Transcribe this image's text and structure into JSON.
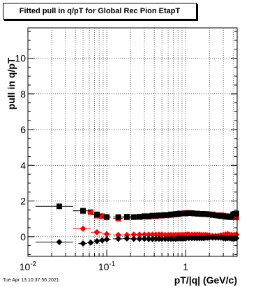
{
  "chart_data": {
    "type": "scatter",
    "title": "Fitted pull in q/pT for Global Rec Pion EtapT",
    "xlabel": "pT/|q| (GeV/c)",
    "ylabel": "pull in q/pT",
    "x_scale": "log",
    "xlim": [
      0.01,
      4.5
    ],
    "ylim": [
      -1.1,
      11.7
    ],
    "grid": true,
    "x_ticks": [
      {
        "value": 0.01,
        "base": "10",
        "exp": "-2"
      },
      {
        "value": 0.1,
        "base": "10",
        "exp": "-1"
      },
      {
        "value": 1,
        "base": "1",
        "exp": ""
      }
    ],
    "y_ticks": [
      0,
      2,
      4,
      6,
      8,
      10
    ],
    "series": [
      {
        "marker": "square",
        "color": "#ff0000",
        "x": [
          0.05,
          0.0625,
          0.075,
          0.0875,
          0.1,
          0.14,
          0.18,
          0.22,
          0.26,
          0.3,
          0.34,
          0.38,
          0.42,
          0.46,
          0.5,
          0.54,
          0.58,
          0.62,
          0.66,
          0.7,
          0.74,
          0.78,
          0.82,
          0.86,
          0.9,
          0.94,
          0.98,
          1.02,
          1.06,
          1.1,
          1.14,
          1.18,
          1.22,
          1.26,
          1.3,
          1.34,
          1.38,
          1.42,
          1.46,
          1.5,
          1.6,
          1.7,
          1.8,
          1.9,
          2.0,
          2.2,
          2.4,
          2.6,
          2.8,
          3.0,
          3.2,
          3.4,
          3.6,
          3.8,
          4.0,
          4.2,
          4.4
        ],
        "y": [
          1.45,
          1.38,
          1.18,
          1.15,
          1.1,
          1.02,
          1.08,
          1.1,
          1.1,
          1.12,
          1.12,
          1.15,
          1.15,
          1.18,
          1.18,
          1.2,
          1.2,
          1.22,
          1.22,
          1.25,
          1.25,
          1.27,
          1.27,
          1.3,
          1.3,
          1.3,
          1.32,
          1.33,
          1.33,
          1.33,
          1.33,
          1.32,
          1.32,
          1.3,
          1.3,
          1.3,
          1.3,
          1.28,
          1.28,
          1.28,
          1.27,
          1.27,
          1.26,
          1.26,
          1.25,
          1.25,
          1.2,
          1.2,
          1.2,
          1.18,
          1.16,
          1.15,
          1.12,
          1.1,
          1.1,
          1.1,
          1.08
        ],
        "xerr": [
          0.0125,
          0.00625,
          0.00625,
          0.00625,
          0.00625,
          0.02,
          0.02,
          0.02,
          0.02,
          0.02,
          0.02,
          0.02,
          0.02,
          0.02,
          0.02,
          0.02,
          0.02,
          0.02,
          0.02,
          0.02,
          0.02,
          0.02,
          0.02,
          0.02,
          0.02,
          0.02,
          0.02,
          0.02,
          0.02,
          0.02,
          0.02,
          0.02,
          0.02,
          0.02,
          0.02,
          0.02,
          0.02,
          0.02,
          0.02,
          0.02,
          0.05,
          0.05,
          0.05,
          0.05,
          0.05,
          0.1,
          0.1,
          0.1,
          0.1,
          0.1,
          0.1,
          0.1,
          0.1,
          0.1,
          0.1,
          0.1,
          0.1
        ]
      },
      {
        "marker": "diamond",
        "color": "#ff0000",
        "x": [
          0.05,
          0.075,
          0.1,
          0.14,
          0.18,
          0.22,
          0.26,
          0.3,
          0.34,
          0.38,
          0.42,
          0.46,
          0.5,
          0.55,
          0.6,
          0.65,
          0.7,
          0.75,
          0.8,
          0.85,
          0.9,
          0.95,
          1.0,
          1.05,
          1.1,
          1.2,
          1.3,
          1.4,
          1.5,
          1.6,
          1.7,
          1.8,
          1.9,
          2.0,
          2.2,
          2.4,
          2.6,
          2.8,
          3.0,
          3.2,
          3.4,
          3.6,
          3.8,
          4.0,
          4.2,
          4.4
        ],
        "y": [
          0.45,
          0.25,
          0.15,
          0.1,
          0.1,
          0.12,
          0.12,
          0.12,
          0.12,
          0.12,
          0.12,
          0.12,
          0.12,
          0.1,
          0.1,
          0.1,
          0.1,
          0.1,
          0.1,
          0.1,
          0.1,
          0.1,
          0.12,
          0.12,
          0.12,
          0.12,
          0.12,
          0.12,
          0.12,
          0.1,
          0.1,
          0.1,
          0.08,
          0.08,
          0.05,
          0.05,
          0.05,
          0.08,
          0.1,
          0.12,
          0.15,
          0.12,
          0.1,
          0.08,
          0.1,
          0.12
        ],
        "xerr": [
          0.0125,
          0.0125,
          0.0125,
          0.02,
          0.02,
          0.02,
          0.02,
          0.02,
          0.02,
          0.02,
          0.02,
          0.02,
          0.02,
          0.025,
          0.025,
          0.025,
          0.025,
          0.025,
          0.025,
          0.025,
          0.025,
          0.025,
          0.025,
          0.025,
          0.025,
          0.05,
          0.05,
          0.05,
          0.05,
          0.05,
          0.05,
          0.05,
          0.05,
          0.05,
          0.1,
          0.1,
          0.1,
          0.1,
          0.1,
          0.1,
          0.1,
          0.1,
          0.1,
          0.1,
          0.1,
          0.1
        ]
      },
      {
        "marker": "square",
        "color": "#000000",
        "x": [
          0.025,
          0.05,
          0.075,
          0.1,
          0.14,
          0.18,
          0.22,
          0.26,
          0.3,
          0.34,
          0.38,
          0.42,
          0.46,
          0.5,
          0.55,
          0.6,
          0.65,
          0.7,
          0.75,
          0.8,
          0.85,
          0.9,
          0.95,
          1.0,
          1.1,
          1.2,
          1.3,
          1.4,
          1.5,
          1.6,
          1.7,
          1.8,
          1.9,
          2.0,
          2.2,
          2.4,
          2.6,
          2.8,
          3.0,
          3.2,
          3.4,
          3.6,
          3.8,
          4.0,
          4.2,
          4.4
        ],
        "y": [
          1.7,
          1.45,
          1.25,
          1.1,
          1.1,
          1.12,
          1.1,
          1.12,
          1.15,
          1.15,
          1.18,
          1.18,
          1.2,
          1.2,
          1.22,
          1.22,
          1.25,
          1.25,
          1.27,
          1.27,
          1.3,
          1.3,
          1.3,
          1.3,
          1.32,
          1.32,
          1.3,
          1.3,
          1.28,
          1.28,
          1.27,
          1.27,
          1.26,
          1.25,
          1.22,
          1.2,
          1.18,
          1.16,
          1.15,
          1.12,
          1.12,
          1.1,
          1.1,
          1.25,
          1.28,
          1.3
        ],
        "xerr": [
          0.0125,
          0.0125,
          0.0125,
          0.0125,
          0.02,
          0.02,
          0.02,
          0.02,
          0.02,
          0.02,
          0.02,
          0.02,
          0.02,
          0.025,
          0.025,
          0.025,
          0.025,
          0.025,
          0.025,
          0.025,
          0.025,
          0.025,
          0.025,
          0.025,
          0.05,
          0.05,
          0.05,
          0.05,
          0.05,
          0.05,
          0.05,
          0.05,
          0.05,
          0.05,
          0.1,
          0.1,
          0.1,
          0.1,
          0.1,
          0.1,
          0.1,
          0.1,
          0.1,
          0.1,
          0.1,
          0.1
        ]
      },
      {
        "marker": "diamond",
        "color": "#000000",
        "x": [
          0.025,
          0.05,
          0.0625,
          0.075,
          0.0875,
          0.1,
          0.14,
          0.18,
          0.22,
          0.26,
          0.3,
          0.34,
          0.38,
          0.42,
          0.46,
          0.5,
          0.55,
          0.6,
          0.65,
          0.7,
          0.75,
          0.8,
          0.85,
          0.9,
          0.95,
          1.0,
          1.1,
          1.2,
          1.3,
          1.4,
          1.5,
          1.6,
          1.7,
          1.8,
          1.9,
          2.0,
          2.2,
          2.4,
          2.6,
          2.8,
          3.0,
          3.2,
          3.4,
          3.6,
          3.8,
          4.0,
          4.2,
          4.4
        ],
        "y": [
          -0.3,
          -0.38,
          -0.33,
          -0.25,
          -0.2,
          -0.15,
          -0.12,
          -0.1,
          -0.12,
          -0.12,
          -0.12,
          -0.13,
          -0.13,
          -0.12,
          -0.12,
          -0.12,
          -0.12,
          -0.12,
          -0.12,
          -0.12,
          -0.12,
          -0.1,
          -0.1,
          -0.1,
          -0.1,
          -0.1,
          -0.08,
          -0.08,
          -0.08,
          -0.08,
          -0.08,
          -0.08,
          -0.08,
          -0.05,
          -0.05,
          -0.05,
          -0.05,
          -0.05,
          -0.05,
          -0.05,
          -0.08,
          -0.1,
          -0.08,
          -0.08,
          -0.1,
          -0.12,
          -0.1,
          -0.08
        ],
        "xerr": [
          0.0125,
          0.00625,
          0.00625,
          0.00625,
          0.00625,
          0.0125,
          0.02,
          0.02,
          0.02,
          0.02,
          0.02,
          0.02,
          0.02,
          0.02,
          0.02,
          0.02,
          0.025,
          0.025,
          0.025,
          0.025,
          0.025,
          0.025,
          0.025,
          0.025,
          0.025,
          0.025,
          0.05,
          0.05,
          0.05,
          0.05,
          0.05,
          0.05,
          0.05,
          0.05,
          0.05,
          0.05,
          0.1,
          0.1,
          0.1,
          0.1,
          0.1,
          0.1,
          0.1,
          0.1,
          0.1,
          0.1,
          0.1,
          0.1
        ]
      }
    ]
  },
  "footer": "Tue Apr 13 10:37:56 2021"
}
